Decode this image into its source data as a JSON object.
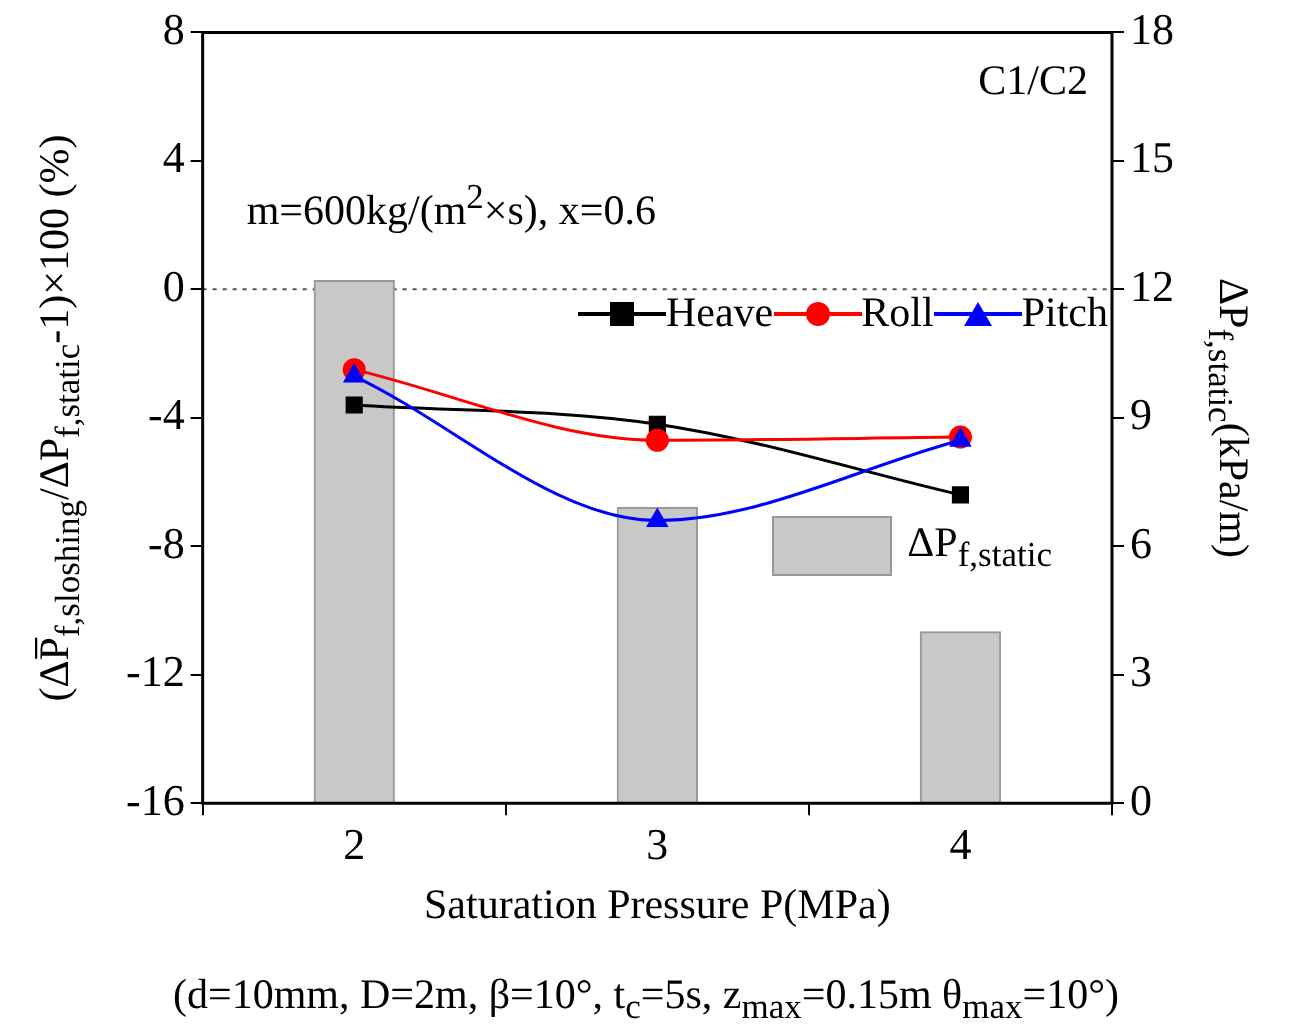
{
  "chart_data": {
    "type": "line",
    "xlabel": "Saturation Pressure P(MPa)",
    "ylabel": "(ΔP̅$_{f,sloshing}$/ΔP$_{f,static}$-1)×100 (%)",
    "y2label": "ΔP$_{f,static}$(kPa/m)",
    "x": [
      2,
      3,
      4
    ],
    "xlim": [
      1.5,
      4.5
    ],
    "xticks": [
      2,
      3,
      4
    ],
    "ylim": [
      -16,
      8
    ],
    "yticks": [
      -16,
      -12,
      -8,
      -4,
      0,
      4,
      8
    ],
    "y2lim": [
      0,
      18
    ],
    "y2ticks": [
      0,
      3,
      6,
      9,
      12,
      15,
      18
    ],
    "series": [
      {
        "name": "ΔP$_{f,static}$",
        "type": "bar",
        "axis": "y2",
        "color": "#c8c8c8",
        "values": [
          12.2,
          6.9,
          4.0
        ]
      },
      {
        "name": "Heave",
        "color": "#000000",
        "marker": "square",
        "values": [
          -3.6,
          -4.2,
          -6.4
        ]
      },
      {
        "name": "Roll",
        "color": "#ff0000",
        "marker": "circle",
        "values": [
          -2.5,
          -4.7,
          -4.6
        ]
      },
      {
        "name": "Pitch",
        "color": "#0000ff",
        "marker": "triangle",
        "values": [
          -2.7,
          -7.2,
          -4.7
        ]
      }
    ],
    "ref_lines": [
      {
        "axis": "y",
        "value": 0,
        "color": "#555555",
        "line_style": "dotted"
      }
    ],
    "annotations": [
      "C1/C2",
      "m=600kg/(m$^{2}$×s),  x=0.6",
      "(d=10mm, D=2m, β=10°, t$_{c}$=5s, z$_{max}$=0.15m θ$_{max}$=10°)"
    ],
    "legend": "right",
    "grid": false
  }
}
